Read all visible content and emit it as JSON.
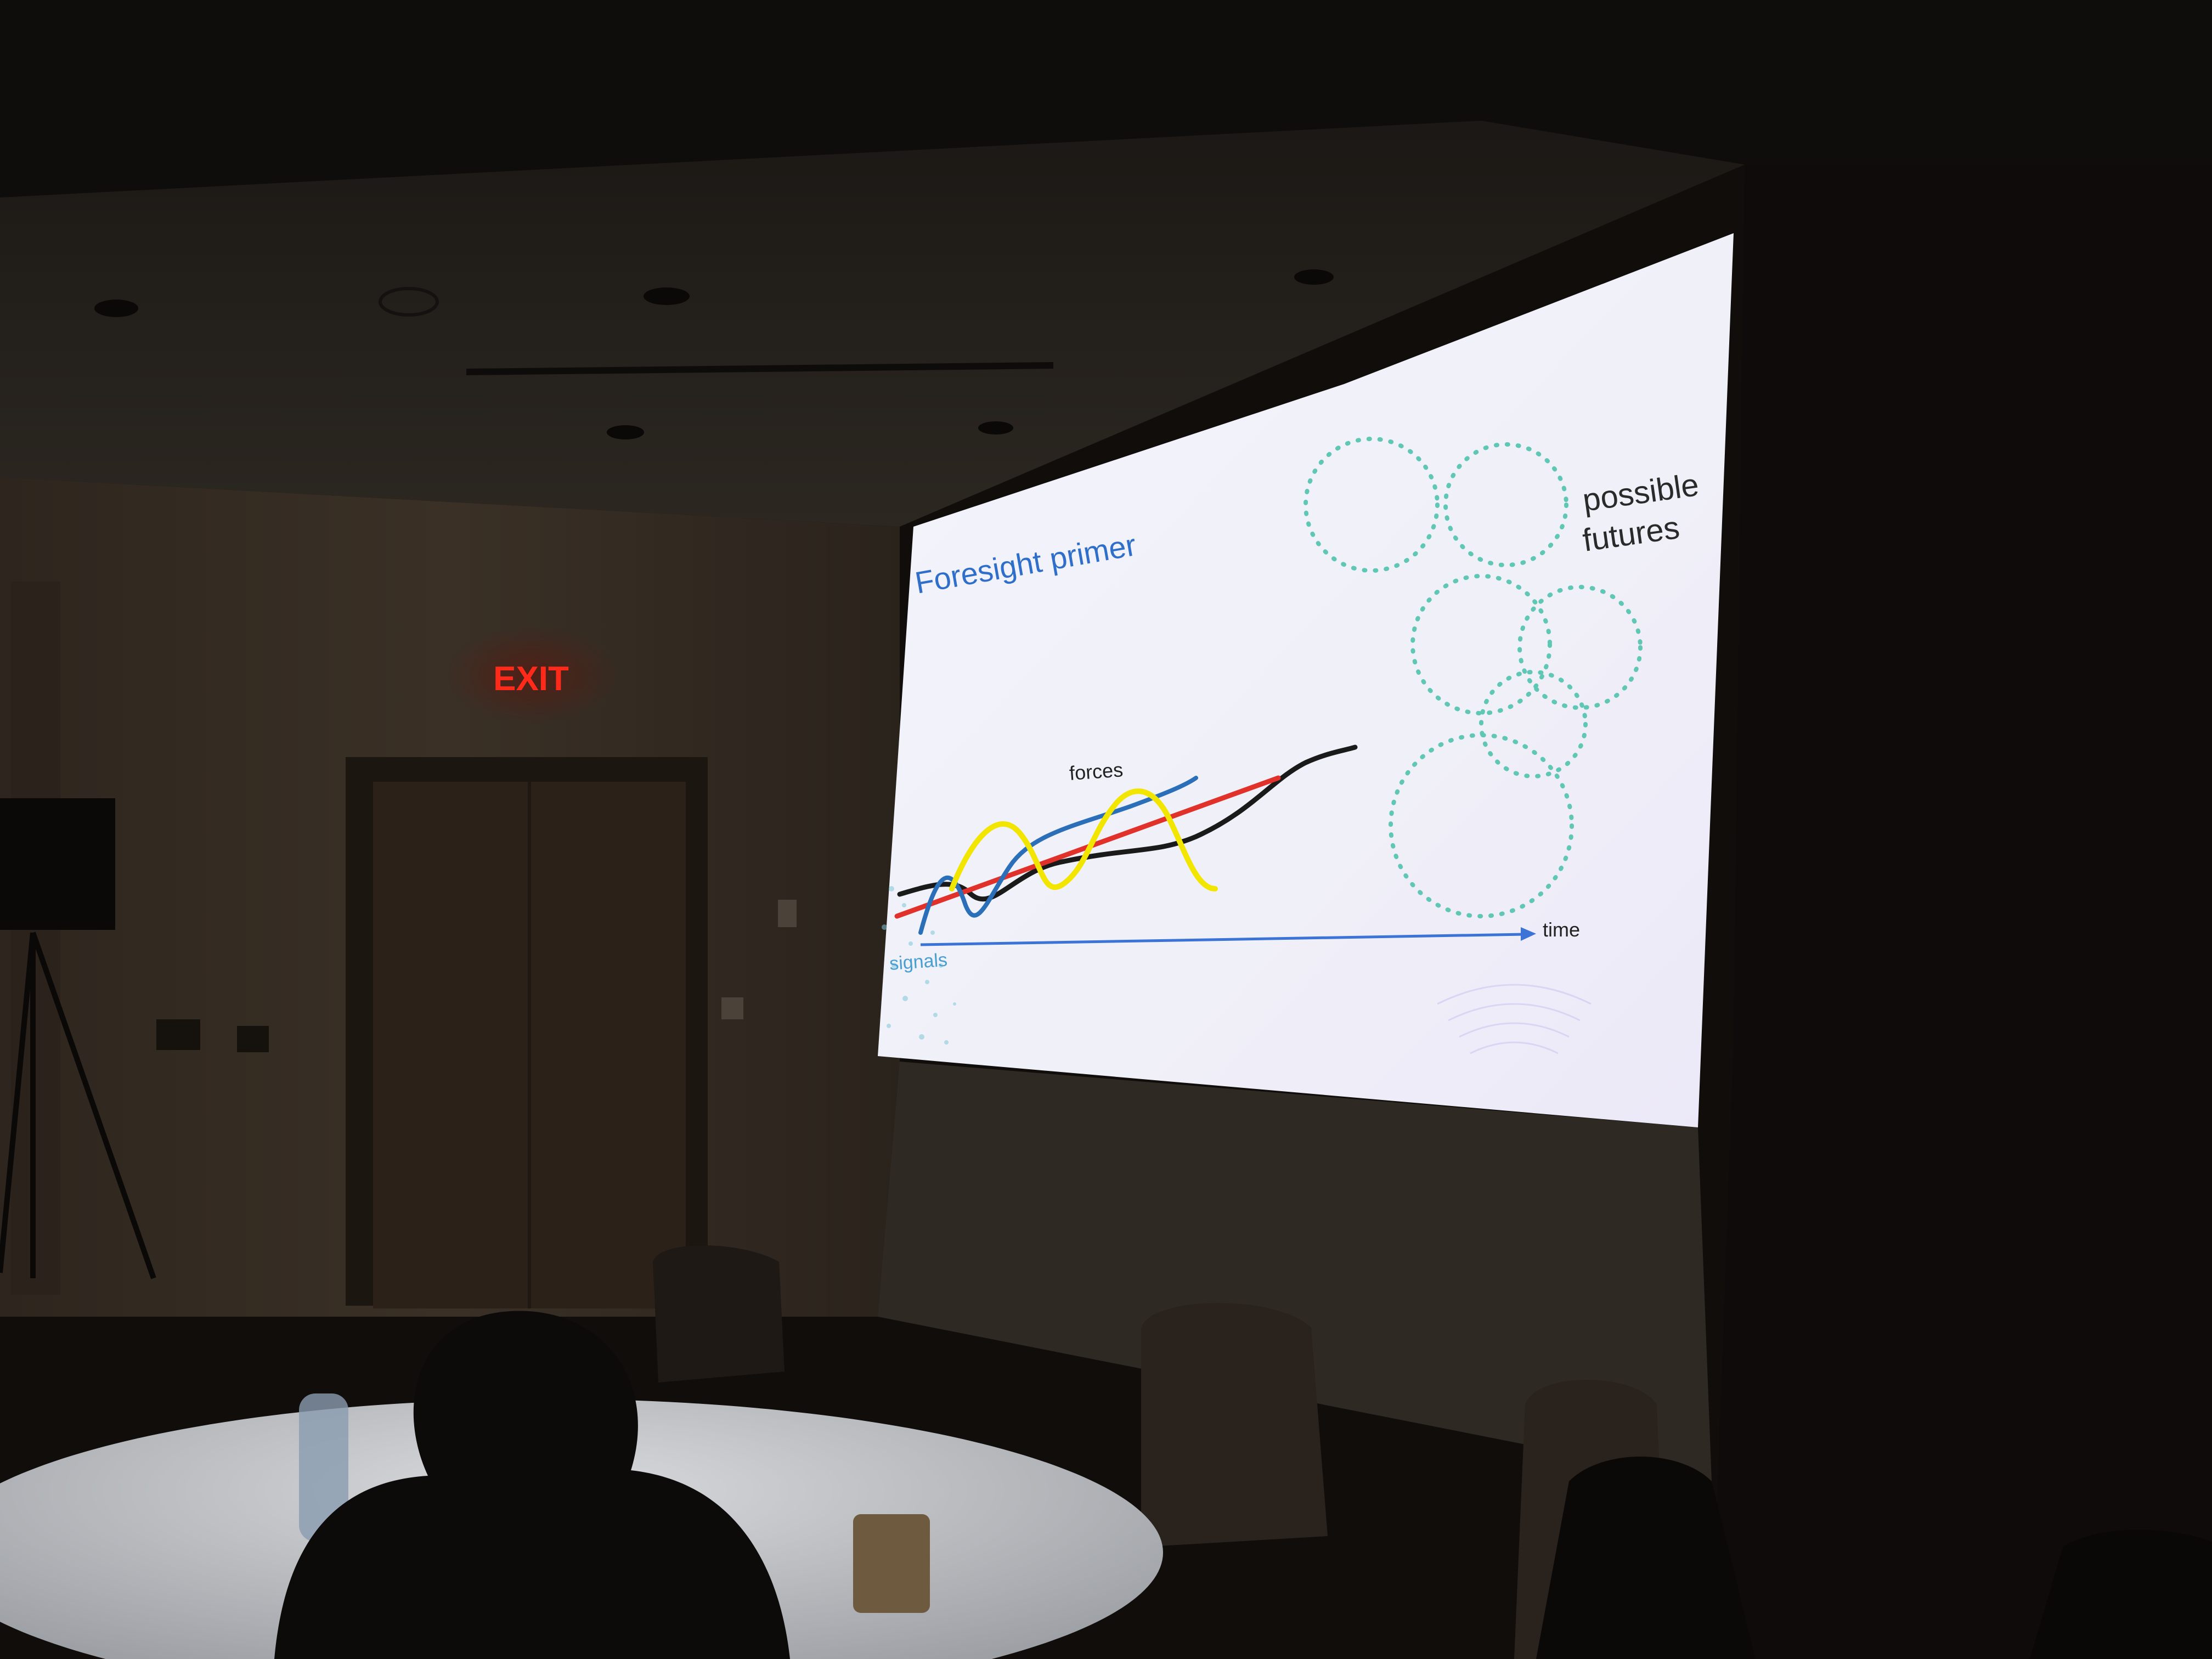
{
  "room": {
    "exit_sign": "EXIT"
  },
  "slide": {
    "title": "Foresight primer",
    "labels": {
      "forces": "forces",
      "signals": "signals",
      "time": "time",
      "possible_line1": "possible",
      "possible_line2": "futures"
    }
  },
  "colors": {
    "title": "#2f6fc9",
    "signals": "#4a9fd0",
    "force_blue": "#2a6fb8",
    "force_red": "#e0322a",
    "force_black": "#1a1a1a",
    "force_yellow": "#f2e600",
    "future_dots": "#5fc7b4",
    "exit_sign": "#ff2a1a"
  }
}
